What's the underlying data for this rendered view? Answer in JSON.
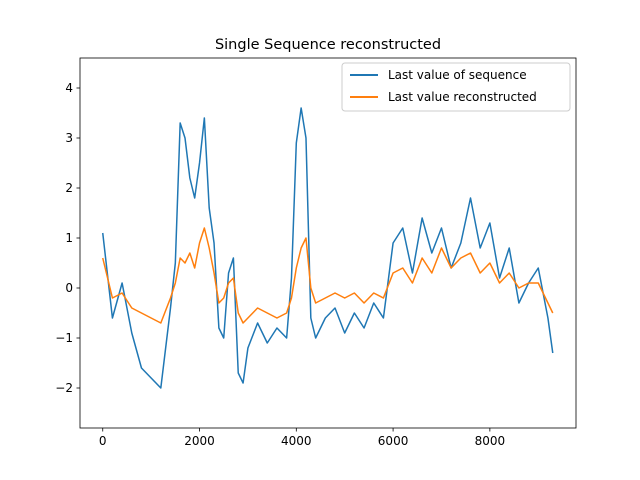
{
  "chart_data": {
    "type": "line",
    "title": "Single Sequence reconstructed",
    "xlabel": "",
    "ylabel": "",
    "xlim": [
      -470,
      9780
    ],
    "ylim": [
      -2.8,
      4.6
    ],
    "xticks": [
      0,
      2000,
      4000,
      6000,
      8000
    ],
    "yticks": [
      -2,
      -1,
      0,
      1,
      2,
      3,
      4
    ],
    "grid": false,
    "legend_position": "top-right",
    "series": [
      {
        "name": "Last value of sequence",
        "color": "#1f77b4",
        "x": [
          0,
          200,
          400,
          600,
          800,
          1000,
          1200,
          1400,
          1500,
          1600,
          1700,
          1800,
          1900,
          2000,
          2100,
          2200,
          2300,
          2400,
          2500,
          2600,
          2700,
          2800,
          2900,
          3000,
          3200,
          3400,
          3600,
          3800,
          3900,
          4000,
          4100,
          4200,
          4300,
          4400,
          4600,
          4800,
          5000,
          5200,
          5400,
          5600,
          5800,
          6000,
          6200,
          6400,
          6600,
          6800,
          7000,
          7200,
          7400,
          7600,
          7800,
          8000,
          8200,
          8400,
          8600,
          8800,
          9000,
          9200,
          9300
        ],
        "y": [
          1.1,
          -0.6,
          0.1,
          -0.9,
          -1.6,
          -1.8,
          -2.0,
          -0.4,
          0.5,
          3.3,
          3.0,
          2.2,
          1.8,
          2.5,
          3.4,
          1.6,
          0.9,
          -0.8,
          -1.0,
          0.3,
          0.6,
          -1.7,
          -1.9,
          -1.2,
          -0.7,
          -1.1,
          -0.8,
          -1.0,
          0.2,
          2.9,
          3.6,
          3.0,
          -0.6,
          -1.0,
          -0.6,
          -0.4,
          -0.9,
          -0.5,
          -0.8,
          -0.3,
          -0.6,
          0.9,
          1.2,
          0.3,
          1.4,
          0.7,
          1.2,
          0.4,
          0.9,
          1.8,
          0.8,
          1.3,
          0.2,
          0.8,
          -0.3,
          0.1,
          0.4,
          -0.6,
          -1.3
        ]
      },
      {
        "name": "Last value reconstructed",
        "color": "#ff7f0e",
        "x": [
          0,
          200,
          400,
          600,
          800,
          1000,
          1200,
          1400,
          1500,
          1600,
          1700,
          1800,
          1900,
          2000,
          2100,
          2200,
          2300,
          2400,
          2500,
          2600,
          2700,
          2800,
          2900,
          3000,
          3200,
          3400,
          3600,
          3800,
          3900,
          4000,
          4100,
          4200,
          4300,
          4400,
          4600,
          4800,
          5000,
          5200,
          5400,
          5600,
          5800,
          6000,
          6200,
          6400,
          6600,
          6800,
          7000,
          7200,
          7400,
          7600,
          7800,
          8000,
          8200,
          8400,
          8600,
          8800,
          9000,
          9200,
          9300
        ],
        "y": [
          0.6,
          -0.2,
          -0.1,
          -0.4,
          -0.5,
          -0.6,
          -0.7,
          -0.2,
          0.1,
          0.6,
          0.5,
          0.7,
          0.4,
          0.9,
          1.2,
          0.8,
          0.3,
          -0.3,
          -0.2,
          0.1,
          0.2,
          -0.5,
          -0.7,
          -0.6,
          -0.4,
          -0.5,
          -0.6,
          -0.5,
          -0.2,
          0.4,
          0.8,
          1.0,
          0.0,
          -0.3,
          -0.2,
          -0.1,
          -0.2,
          -0.1,
          -0.3,
          -0.1,
          -0.2,
          0.3,
          0.4,
          0.1,
          0.6,
          0.3,
          0.8,
          0.4,
          0.6,
          0.7,
          0.3,
          0.5,
          0.1,
          0.3,
          0.0,
          0.1,
          0.1,
          -0.3,
          -0.5
        ]
      }
    ]
  }
}
